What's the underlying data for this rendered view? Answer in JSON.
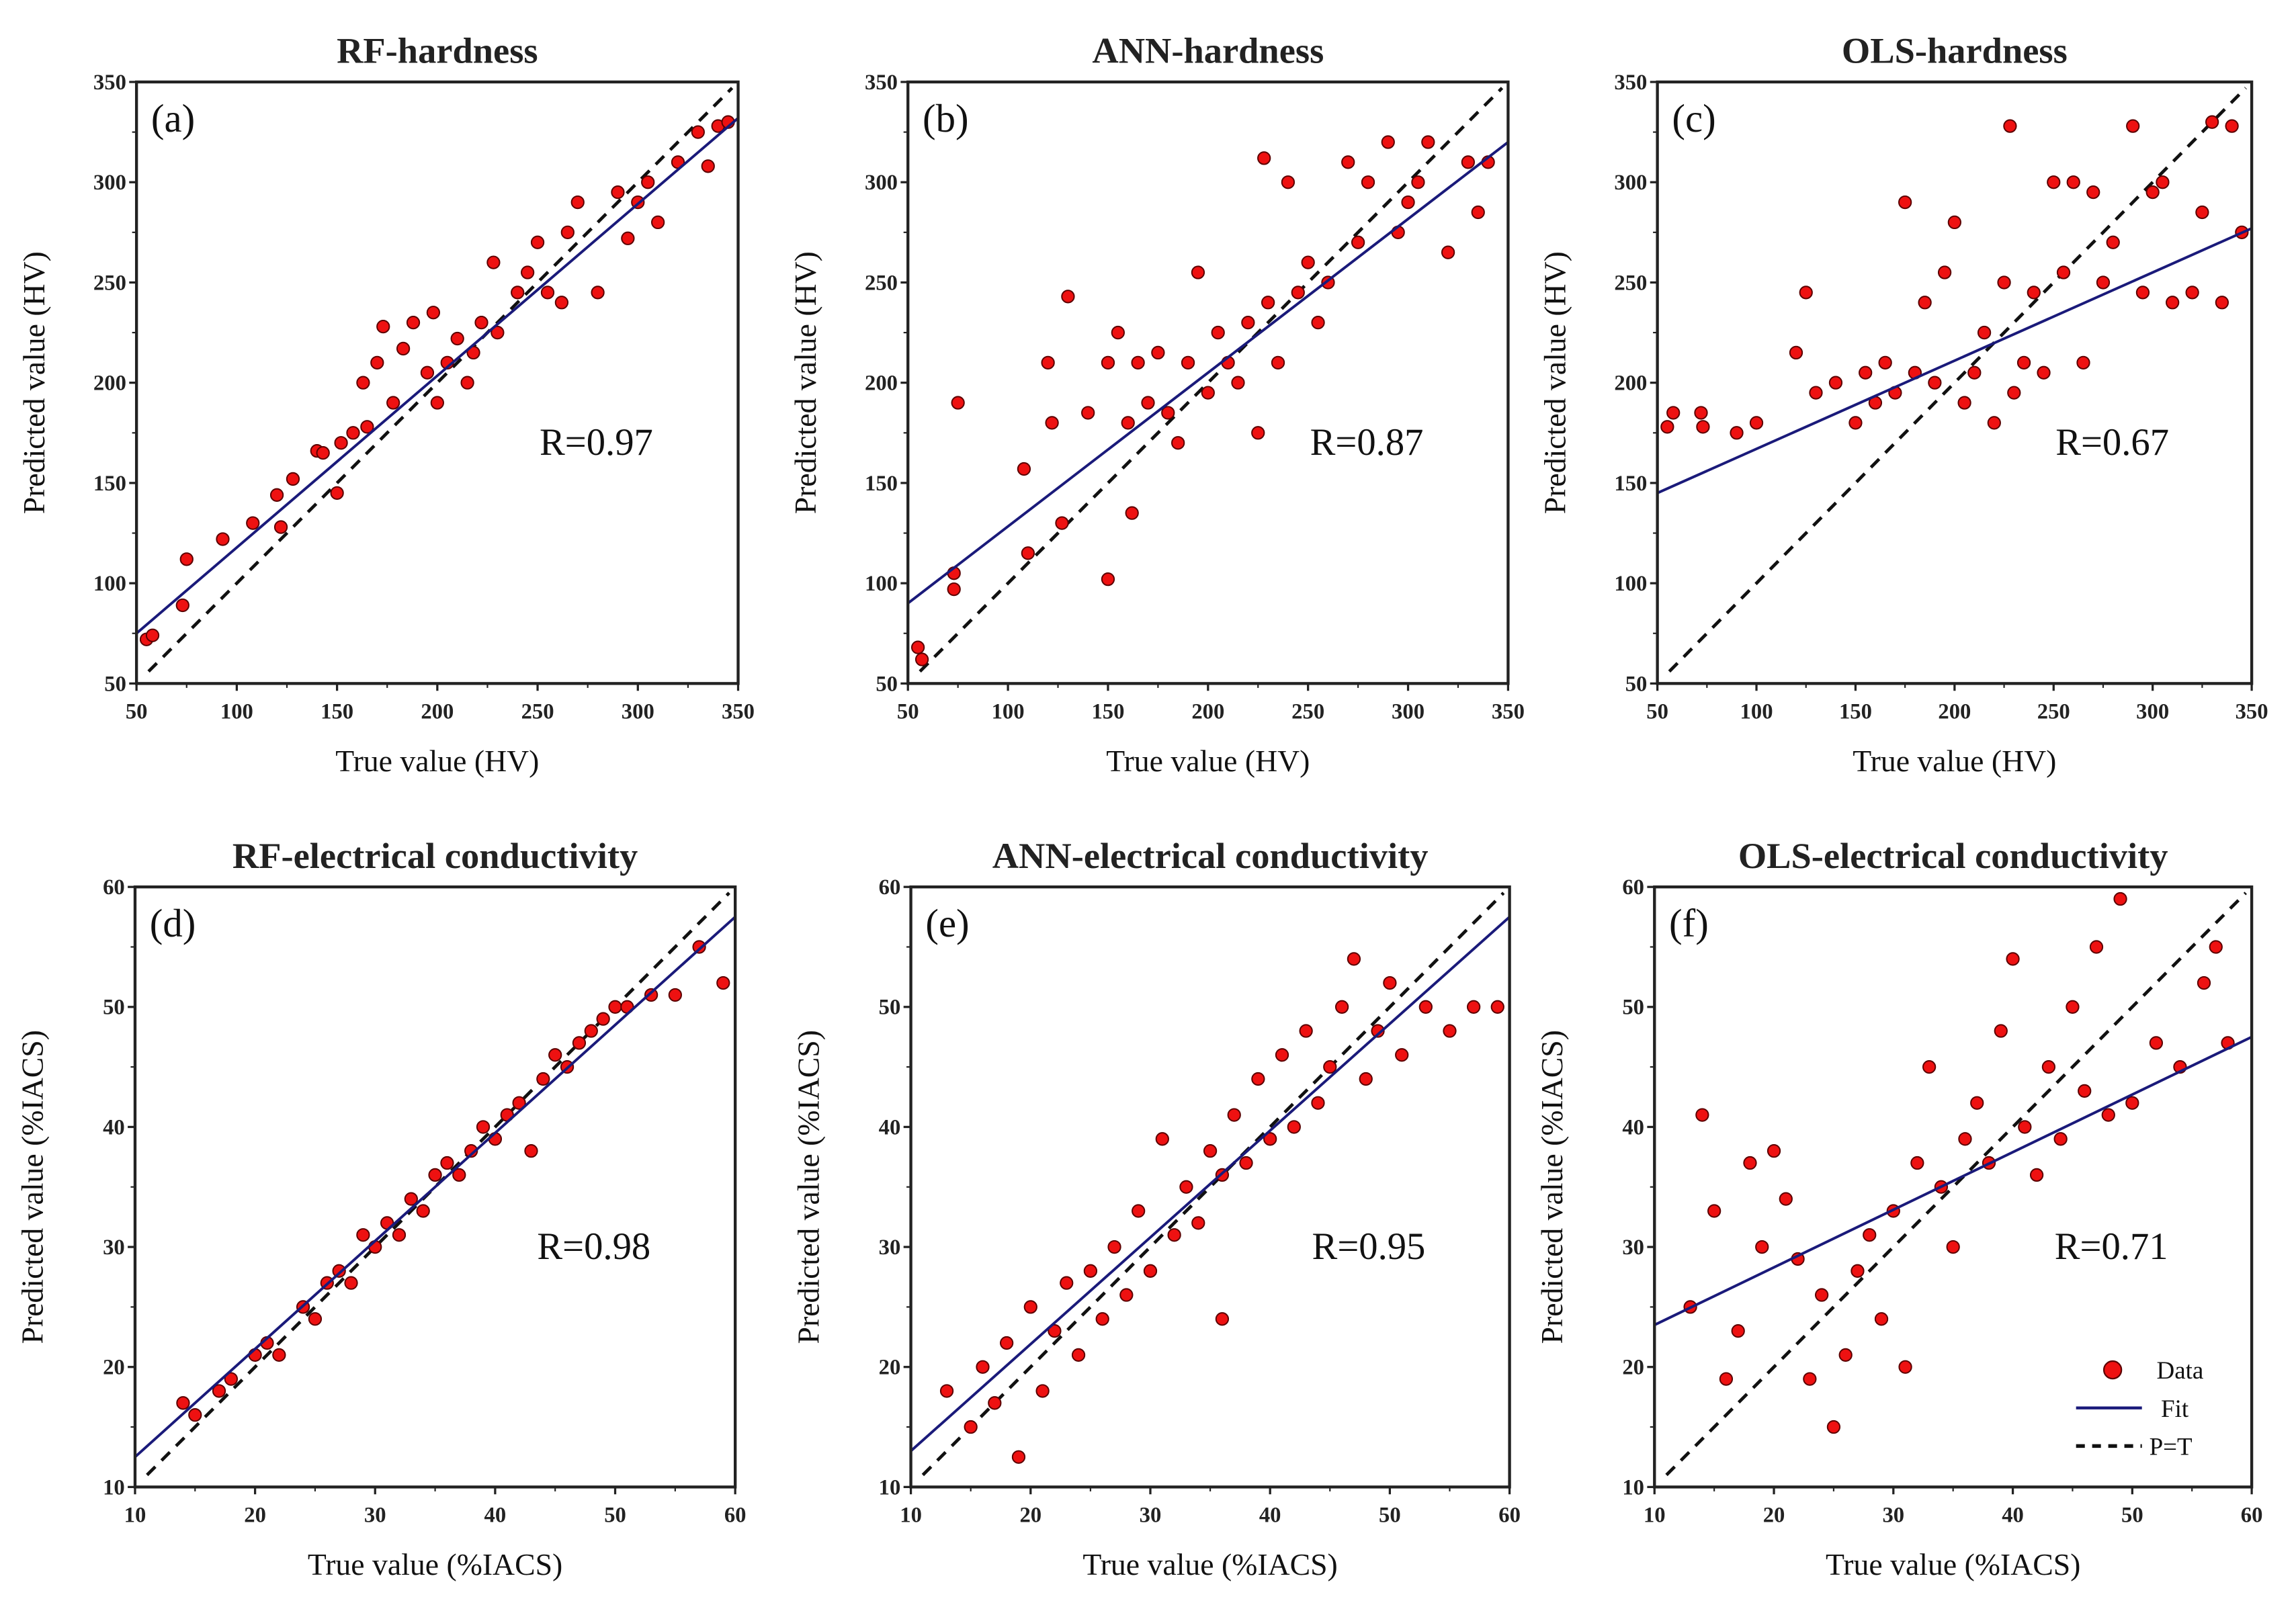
{
  "chart_data": [
    {
      "type": "scatter",
      "panel": "(a)",
      "title": "RF-hardness",
      "xlabel": "True value (HV)",
      "ylabel": "Predicted value (HV)",
      "xlim": [
        50,
        350
      ],
      "ylim": [
        50,
        350
      ],
      "ticks": [
        50,
        100,
        150,
        200,
        250,
        300,
        350
      ],
      "r_label": "R=0.97",
      "fit": [
        [
          50,
          75
        ],
        [
          350,
          332
        ]
      ],
      "points": [
        [
          55,
          72
        ],
        [
          58,
          74
        ],
        [
          73,
          89
        ],
        [
          75,
          112
        ],
        [
          93,
          122
        ],
        [
          108,
          130
        ],
        [
          122,
          128
        ],
        [
          120,
          144
        ],
        [
          128,
          152
        ],
        [
          140,
          166
        ],
        [
          143,
          165
        ],
        [
          150,
          145
        ],
        [
          152,
          170
        ],
        [
          158,
          175
        ],
        [
          163,
          200
        ],
        [
          165,
          178
        ],
        [
          170,
          210
        ],
        [
          173,
          228
        ],
        [
          178,
          190
        ],
        [
          183,
          217
        ],
        [
          188,
          230
        ],
        [
          195,
          205
        ],
        [
          198,
          235
        ],
        [
          200,
          190
        ],
        [
          205,
          210
        ],
        [
          210,
          222
        ],
        [
          215,
          200
        ],
        [
          218,
          215
        ],
        [
          222,
          230
        ],
        [
          228,
          260
        ],
        [
          230,
          225
        ],
        [
          240,
          245
        ],
        [
          245,
          255
        ],
        [
          250,
          270
        ],
        [
          255,
          245
        ],
        [
          262,
          240
        ],
        [
          265,
          275
        ],
        [
          270,
          290
        ],
        [
          280,
          245
        ],
        [
          290,
          295
        ],
        [
          295,
          272
        ],
        [
          300,
          290
        ],
        [
          305,
          300
        ],
        [
          310,
          280
        ],
        [
          320,
          310
        ],
        [
          330,
          325
        ],
        [
          335,
          308
        ],
        [
          340,
          328
        ],
        [
          345,
          330
        ]
      ]
    },
    {
      "type": "scatter",
      "panel": "(b)",
      "title": "ANN-hardness",
      "xlabel": "True value (HV)",
      "ylabel": "Predicted value (HV)",
      "xlim": [
        50,
        350
      ],
      "ylim": [
        50,
        350
      ],
      "ticks": [
        50,
        100,
        150,
        200,
        250,
        300,
        350
      ],
      "r_label": "R=0.87",
      "fit": [
        [
          50,
          90
        ],
        [
          350,
          320
        ]
      ],
      "points": [
        [
          55,
          68
        ],
        [
          57,
          62
        ],
        [
          73,
          105
        ],
        [
          73,
          97
        ],
        [
          75,
          190
        ],
        [
          108,
          157
        ],
        [
          110,
          115
        ],
        [
          120,
          210
        ],
        [
          122,
          180
        ],
        [
          127,
          130
        ],
        [
          130,
          243
        ],
        [
          140,
          185
        ],
        [
          150,
          102
        ],
        [
          150,
          210
        ],
        [
          155,
          225
        ],
        [
          160,
          180
        ],
        [
          162,
          135
        ],
        [
          165,
          210
        ],
        [
          170,
          190
        ],
        [
          175,
          215
        ],
        [
          180,
          185
        ],
        [
          185,
          170
        ],
        [
          190,
          210
        ],
        [
          195,
          255
        ],
        [
          200,
          195
        ],
        [
          205,
          225
        ],
        [
          210,
          210
        ],
        [
          215,
          200
        ],
        [
          220,
          230
        ],
        [
          225,
          175
        ],
        [
          228,
          312
        ],
        [
          230,
          240
        ],
        [
          235,
          210
        ],
        [
          240,
          300
        ],
        [
          245,
          245
        ],
        [
          250,
          260
        ],
        [
          255,
          230
        ],
        [
          260,
          250
        ],
        [
          270,
          310
        ],
        [
          275,
          270
        ],
        [
          280,
          300
        ],
        [
          290,
          320
        ],
        [
          295,
          275
        ],
        [
          300,
          290
        ],
        [
          305,
          300
        ],
        [
          310,
          320
        ],
        [
          320,
          265
        ],
        [
          330,
          310
        ],
        [
          335,
          285
        ],
        [
          340,
          310
        ]
      ]
    },
    {
      "type": "scatter",
      "panel": "(c)",
      "title": "OLS-hardness",
      "xlabel": "True value (HV)",
      "ylabel": "Predicted value (HV)",
      "xlim": [
        50,
        350
      ],
      "ylim": [
        50,
        350
      ],
      "ticks": [
        50,
        100,
        150,
        200,
        250,
        300,
        350
      ],
      "r_label": "R=0.67",
      "fit": [
        [
          50,
          145
        ],
        [
          350,
          277
        ]
      ],
      "points": [
        [
          55,
          178
        ],
        [
          58,
          185
        ],
        [
          72,
          185
        ],
        [
          73,
          178
        ],
        [
          90,
          175
        ],
        [
          100,
          180
        ],
        [
          120,
          215
        ],
        [
          125,
          245
        ],
        [
          130,
          195
        ],
        [
          140,
          200
        ],
        [
          150,
          180
        ],
        [
          155,
          205
        ],
        [
          160,
          190
        ],
        [
          165,
          210
        ],
        [
          170,
          195
        ],
        [
          175,
          290
        ],
        [
          180,
          205
        ],
        [
          185,
          240
        ],
        [
          190,
          200
        ],
        [
          195,
          255
        ],
        [
          200,
          280
        ],
        [
          205,
          190
        ],
        [
          210,
          205
        ],
        [
          215,
          225
        ],
        [
          220,
          180
        ],
        [
          225,
          250
        ],
        [
          228,
          328
        ],
        [
          230,
          195
        ],
        [
          235,
          210
        ],
        [
          240,
          245
        ],
        [
          245,
          205
        ],
        [
          250,
          300
        ],
        [
          255,
          255
        ],
        [
          260,
          300
        ],
        [
          265,
          210
        ],
        [
          270,
          295
        ],
        [
          275,
          250
        ],
        [
          280,
          270
        ],
        [
          290,
          328
        ],
        [
          295,
          245
        ],
        [
          300,
          295
        ],
        [
          305,
          300
        ],
        [
          310,
          240
        ],
        [
          320,
          245
        ],
        [
          325,
          285
        ],
        [
          330,
          330
        ],
        [
          335,
          240
        ],
        [
          340,
          328
        ],
        [
          345,
          275
        ]
      ]
    },
    {
      "type": "scatter",
      "panel": "(d)",
      "title": "RF-electrical conductivity",
      "xlabel": "True value (%IACS)",
      "ylabel": "Predicted value (%IACS)",
      "xlim": [
        10,
        60
      ],
      "ylim": [
        10,
        60
      ],
      "ticks": [
        10,
        20,
        30,
        40,
        50,
        60
      ],
      "r_label": "R=0.98",
      "fit": [
        [
          10,
          12.5
        ],
        [
          60,
          57.5
        ]
      ],
      "points": [
        [
          14,
          17
        ],
        [
          15,
          16
        ],
        [
          17,
          18
        ],
        [
          18,
          19
        ],
        [
          20,
          21
        ],
        [
          21,
          22
        ],
        [
          22,
          21
        ],
        [
          24,
          25
        ],
        [
          25,
          24
        ],
        [
          26,
          27
        ],
        [
          27,
          28
        ],
        [
          28,
          27
        ],
        [
          29,
          31
        ],
        [
          30,
          30
        ],
        [
          31,
          32
        ],
        [
          32,
          31
        ],
        [
          33,
          34
        ],
        [
          34,
          33
        ],
        [
          35,
          36
        ],
        [
          36,
          37
        ],
        [
          37,
          36
        ],
        [
          38,
          38
        ],
        [
          39,
          40
        ],
        [
          40,
          39
        ],
        [
          41,
          41
        ],
        [
          42,
          42
        ],
        [
          43,
          38
        ],
        [
          44,
          44
        ],
        [
          45,
          46
        ],
        [
          46,
          45
        ],
        [
          47,
          47
        ],
        [
          48,
          48
        ],
        [
          49,
          49
        ],
        [
          50,
          50
        ],
        [
          51,
          50
        ],
        [
          53,
          51
        ],
        [
          55,
          51
        ],
        [
          57,
          55
        ],
        [
          59,
          52
        ]
      ]
    },
    {
      "type": "scatter",
      "panel": "(e)",
      "title": "ANN-electrical conductivity",
      "xlabel": "True value (%IACS)",
      "ylabel": "Predicted value (%IACS)",
      "xlim": [
        10,
        60
      ],
      "ylim": [
        10,
        60
      ],
      "ticks": [
        10,
        20,
        30,
        40,
        50,
        60
      ],
      "r_label": "R=0.95",
      "fit": [
        [
          10,
          13
        ],
        [
          60,
          57.5
        ]
      ],
      "points": [
        [
          13,
          18
        ],
        [
          15,
          15
        ],
        [
          16,
          20
        ],
        [
          17,
          17
        ],
        [
          18,
          22
        ],
        [
          19,
          12.5
        ],
        [
          20,
          25
        ],
        [
          21,
          18
        ],
        [
          22,
          23
        ],
        [
          23,
          27
        ],
        [
          24,
          21
        ],
        [
          25,
          28
        ],
        [
          26,
          24
        ],
        [
          27,
          30
        ],
        [
          28,
          26
        ],
        [
          29,
          33
        ],
        [
          30,
          28
        ],
        [
          31,
          39
        ],
        [
          32,
          31
        ],
        [
          33,
          35
        ],
        [
          34,
          32
        ],
        [
          35,
          38
        ],
        [
          36,
          24
        ],
        [
          36,
          36
        ],
        [
          37,
          41
        ],
        [
          38,
          37
        ],
        [
          39,
          44
        ],
        [
          40,
          39
        ],
        [
          41,
          46
        ],
        [
          42,
          40
        ],
        [
          43,
          48
        ],
        [
          44,
          42
        ],
        [
          45,
          45
        ],
        [
          46,
          50
        ],
        [
          47,
          54
        ],
        [
          48,
          44
        ],
        [
          49,
          48
        ],
        [
          50,
          52
        ],
        [
          51,
          46
        ],
        [
          53,
          50
        ],
        [
          55,
          48
        ],
        [
          57,
          50
        ],
        [
          59,
          50
        ]
      ]
    },
    {
      "type": "scatter",
      "panel": "(f)",
      "title": "OLS-electrical conductivity",
      "xlabel": "True value (%IACS)",
      "ylabel": "Predicted value (%IACS)",
      "xlim": [
        10,
        60
      ],
      "ylim": [
        10,
        60
      ],
      "ticks": [
        10,
        20,
        30,
        40,
        50,
        60
      ],
      "r_label": "R=0.71",
      "fit": [
        [
          10,
          23.5
        ],
        [
          60,
          47.5
        ]
      ],
      "legend": {
        "placement": "bottom-right",
        "items": [
          "Data",
          "Fit",
          "P=T"
        ]
      },
      "points": [
        [
          13,
          25
        ],
        [
          14,
          41
        ],
        [
          15,
          33
        ],
        [
          16,
          19
        ],
        [
          17,
          23
        ],
        [
          18,
          37
        ],
        [
          19,
          30
        ],
        [
          20,
          38
        ],
        [
          21,
          34
        ],
        [
          22,
          29
        ],
        [
          23,
          19
        ],
        [
          24,
          26
        ],
        [
          25,
          15
        ],
        [
          26,
          21
        ],
        [
          27,
          28
        ],
        [
          28,
          31
        ],
        [
          29,
          24
        ],
        [
          30,
          33
        ],
        [
          31,
          20
        ],
        [
          32,
          37
        ],
        [
          33,
          45
        ],
        [
          34,
          35
        ],
        [
          35,
          30
        ],
        [
          36,
          39
        ],
        [
          37,
          42
        ],
        [
          38,
          37
        ],
        [
          39,
          48
        ],
        [
          40,
          54
        ],
        [
          41,
          40
        ],
        [
          42,
          36
        ],
        [
          43,
          45
        ],
        [
          44,
          39
        ],
        [
          45,
          50
        ],
        [
          46,
          43
        ],
        [
          47,
          55
        ],
        [
          48,
          41
        ],
        [
          49,
          59
        ],
        [
          50,
          42
        ],
        [
          52,
          47
        ],
        [
          54,
          45
        ],
        [
          56,
          52
        ],
        [
          57,
          55
        ],
        [
          58,
          47
        ]
      ]
    }
  ],
  "colors": {
    "data": "#ee1111",
    "fit": "#1a1a7a",
    "identity": "#111111"
  }
}
